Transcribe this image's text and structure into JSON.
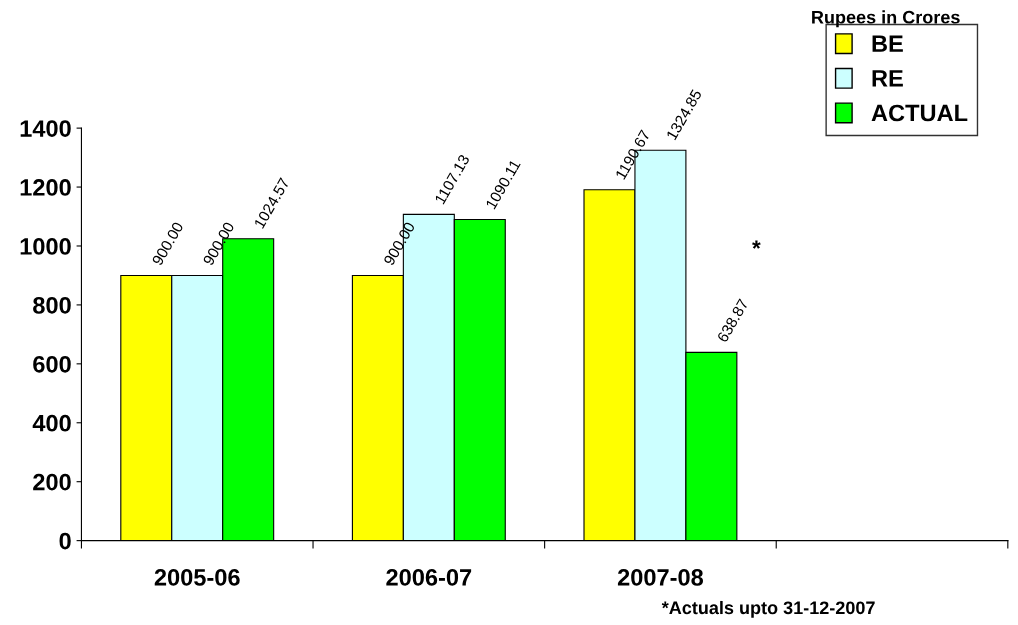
{
  "chart_data": {
    "type": "bar",
    "categories": [
      "2005-06",
      "2006-07",
      "2007-08",
      null
    ],
    "series": [
      {
        "name": "BE",
        "color": "#ffff00",
        "values": [
          900.0,
          900.0,
          1190.67,
          null
        ],
        "value_labels": [
          "900.00",
          "900.00",
          "1190.67",
          null
        ]
      },
      {
        "name": "RE",
        "color": "#ccffff",
        "values": [
          900.0,
          1107.13,
          1324.85,
          null
        ],
        "value_labels": [
          "900.00",
          "1107.13",
          "1324.85",
          null
        ]
      },
      {
        "name": "ACTUAL",
        "color": "#00ff00",
        "values": [
          1024.57,
          1090.11,
          638.87,
          null
        ],
        "value_labels": [
          "1024.57",
          "1090.11",
          "638.87",
          null
        ]
      }
    ],
    "ylim": [
      0,
      1400
    ],
    "yticks": [
      0,
      200,
      400,
      600,
      800,
      1000,
      1200,
      1400
    ],
    "grid": false,
    "legend": "top right",
    "annotations": [
      "Rupees in Crores",
      "*Actuals upto 31-12-2007",
      "*"
    ]
  }
}
